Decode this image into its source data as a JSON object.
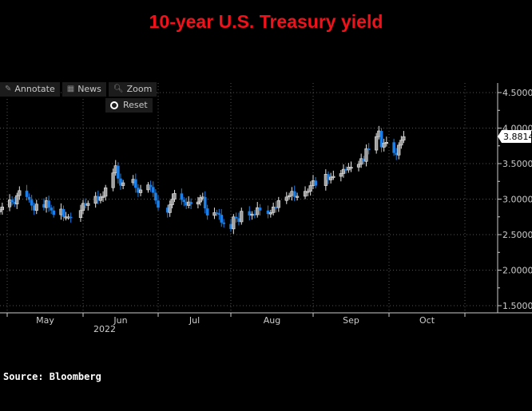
{
  "title": "10-year U.S. Treasury yield",
  "toolbar": {
    "annotate": "Annotate",
    "annotate_icon": "pencil-icon",
    "news": "News",
    "news_icon": "newspaper-icon",
    "zoom": "Zoom",
    "zoom_icon": "magnifier-icon",
    "reset": "Reset",
    "reset_icon": "radio-icon"
  },
  "source": "Source: Bloomberg",
  "chart_data": {
    "type": "candlestick",
    "title": "10-year U.S. Treasury yield",
    "colors": {
      "up": "#a0a0a0",
      "up_outline": "#e6e6e6",
      "down": "#1a7fe8",
      "grid": "#555555",
      "axis": "#cccccc",
      "title": "#f0121b"
    },
    "ylim": [
      1.5,
      4.5
    ],
    "y_ticks": [
      "4.5000",
      "4.0000",
      "3.5000",
      "3.0000",
      "2.5000",
      "2.0000",
      "1.5000"
    ],
    "x_ticks": [
      "May",
      "Jun",
      "Jul",
      "Aug",
      "Sep",
      "Oct"
    ],
    "x_year_label": "2022",
    "last_value": "3.8814",
    "grid": true,
    "dates": [
      "2022-04-28",
      "2022-04-29",
      "2022-05-02",
      "2022-05-03",
      "2022-05-04",
      "2022-05-05",
      "2022-05-06",
      "2022-05-09",
      "2022-05-10",
      "2022-05-11",
      "2022-05-12",
      "2022-05-13",
      "2022-05-16",
      "2022-05-17",
      "2022-05-18",
      "2022-05-19",
      "2022-05-20",
      "2022-05-23",
      "2022-05-24",
      "2022-05-25",
      "2022-05-26",
      "2022-05-27",
      "2022-05-31",
      "2022-06-01",
      "2022-06-02",
      "2022-06-03",
      "2022-06-06",
      "2022-06-07",
      "2022-06-08",
      "2022-06-09",
      "2022-06-10",
      "2022-06-13",
      "2022-06-14",
      "2022-06-15",
      "2022-06-16",
      "2022-06-17",
      "2022-06-21",
      "2022-06-22",
      "2022-06-23",
      "2022-06-24",
      "2022-06-27",
      "2022-06-28",
      "2022-06-29",
      "2022-06-30",
      "2022-07-01",
      "2022-07-05",
      "2022-07-06",
      "2022-07-07",
      "2022-07-08",
      "2022-07-11",
      "2022-07-12",
      "2022-07-13",
      "2022-07-14",
      "2022-07-15",
      "2022-07-18",
      "2022-07-19",
      "2022-07-20",
      "2022-07-21",
      "2022-07-22",
      "2022-07-25",
      "2022-07-26",
      "2022-07-27",
      "2022-07-28",
      "2022-07-29",
      "2022-08-01",
      "2022-08-02",
      "2022-08-03",
      "2022-08-04",
      "2022-08-05",
      "2022-08-08",
      "2022-08-09",
      "2022-08-10",
      "2022-08-11",
      "2022-08-12",
      "2022-08-15",
      "2022-08-16",
      "2022-08-17",
      "2022-08-18",
      "2022-08-19",
      "2022-08-22",
      "2022-08-23",
      "2022-08-24",
      "2022-08-25",
      "2022-08-26",
      "2022-08-29",
      "2022-08-30",
      "2022-08-31",
      "2022-09-01",
      "2022-09-02",
      "2022-09-06",
      "2022-09-07",
      "2022-09-08",
      "2022-09-09",
      "2022-09-12",
      "2022-09-13",
      "2022-09-14",
      "2022-09-15",
      "2022-09-16",
      "2022-09-19",
      "2022-09-20",
      "2022-09-21",
      "2022-09-22",
      "2022-09-23",
      "2022-09-26",
      "2022-09-27",
      "2022-09-28",
      "2022-09-29",
      "2022-09-30",
      "2022-10-03",
      "2022-10-04",
      "2022-10-05",
      "2022-10-06",
      "2022-10-07"
    ],
    "close": [
      2.85,
      2.89,
      2.99,
      2.96,
      2.93,
      3.05,
      3.12,
      3.03,
      2.99,
      2.91,
      2.84,
      2.93,
      2.88,
      2.98,
      2.88,
      2.84,
      2.78,
      2.86,
      2.75,
      2.75,
      2.75,
      2.74,
      2.84,
      2.94,
      2.91,
      2.94,
      3.04,
      2.98,
      3.03,
      3.04,
      3.16,
      3.37,
      3.47,
      3.29,
      3.19,
      3.23,
      3.28,
      3.16,
      3.09,
      3.13,
      3.2,
      3.17,
      3.09,
      2.98,
      2.88,
      2.81,
      2.92,
      3.0,
      3.08,
      2.99,
      2.96,
      2.91,
      2.96,
      2.93,
      2.96,
      3.02,
      3.03,
      2.87,
      2.77,
      2.81,
      2.8,
      2.78,
      2.67,
      2.65,
      2.58,
      2.75,
      2.73,
      2.68,
      2.83,
      2.77,
      2.79,
      2.78,
      2.88,
      2.84,
      2.79,
      2.81,
      2.89,
      2.88,
      2.98,
      3.03,
      3.05,
      3.11,
      3.03,
      3.04,
      3.11,
      3.11,
      3.19,
      3.26,
      3.19,
      3.35,
      3.27,
      3.31,
      3.32,
      3.36,
      3.42,
      3.41,
      3.45,
      3.45,
      3.49,
      3.57,
      3.53,
      3.71,
      3.69,
      3.88,
      3.96,
      3.73,
      3.79,
      3.8,
      3.65,
      3.62,
      3.76,
      3.83,
      3.88
    ]
  }
}
